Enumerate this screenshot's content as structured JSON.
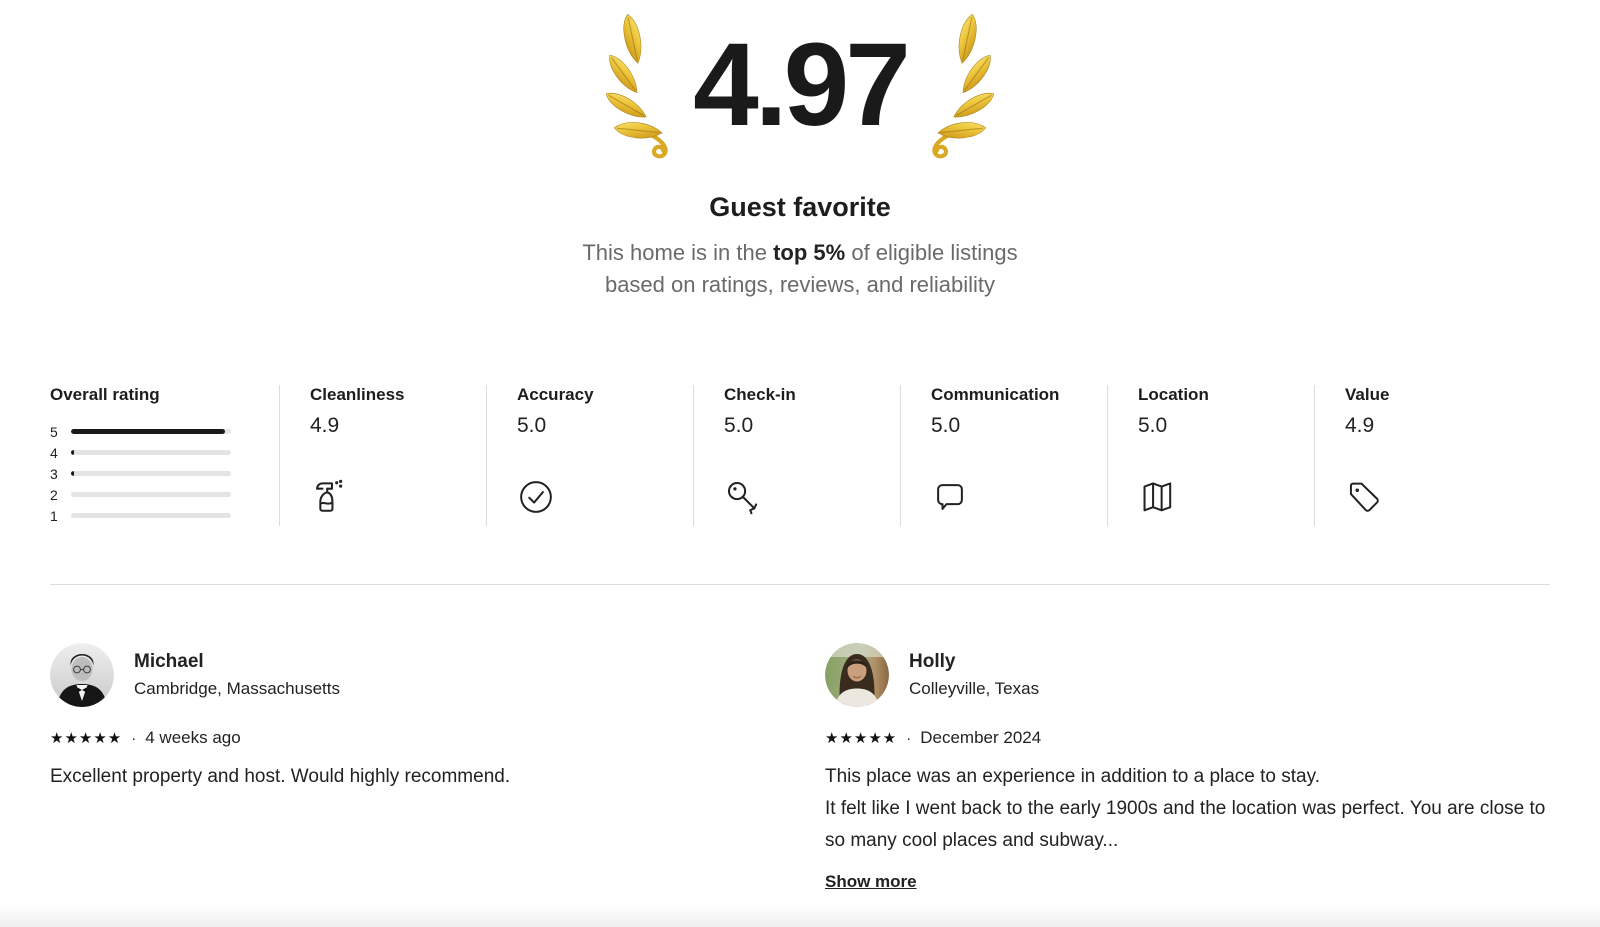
{
  "hero": {
    "rating": "4.97",
    "title": "Guest favorite",
    "subtitle_prefix": "This home is in the ",
    "subtitle_bold": "top 5%",
    "subtitle_suffix": " of eligible listings",
    "subtitle_line2": "based on ratings, reviews, and reliability",
    "laurel_icon": "gold-laurel-icon"
  },
  "ratings": {
    "overall": {
      "label": "Overall rating",
      "bars": [
        {
          "star": "5",
          "pct": 96
        },
        {
          "star": "4",
          "pct": 2
        },
        {
          "star": "3",
          "pct": 2
        },
        {
          "star": "2",
          "pct": 0
        },
        {
          "star": "1",
          "pct": 0
        }
      ]
    },
    "categories": [
      {
        "label": "Cleanliness",
        "value": "4.9",
        "icon": "spray-bottle-icon"
      },
      {
        "label": "Accuracy",
        "value": "5.0",
        "icon": "check-circle-icon"
      },
      {
        "label": "Check-in",
        "value": "5.0",
        "icon": "key-icon"
      },
      {
        "label": "Communication",
        "value": "5.0",
        "icon": "speech-bubble-icon"
      },
      {
        "label": "Location",
        "value": "5.0",
        "icon": "folded-map-icon"
      },
      {
        "label": "Value",
        "value": "4.9",
        "icon": "price-tag-icon"
      }
    ]
  },
  "reviews": [
    {
      "name": "Michael",
      "location": "Cambridge, Massachusetts",
      "stars": "★★★★★",
      "separator": "·",
      "date": "4 weeks ago",
      "text": "Excellent property and host. Would highly recommend."
    },
    {
      "name": "Holly",
      "location": "Colleyville, Texas",
      "stars": "★★★★★",
      "separator": "·",
      "date": "December 2024",
      "text": "This place was an experience in addition to a place to stay.\nIt felt like I went back to the early 1900s and the location was perfect. You are close to so many cool places and subway...",
      "show_more": "Show more"
    }
  ],
  "colors": {
    "text_primary": "#222222",
    "text_secondary": "#6a6a6a",
    "bar_fill": "#1a1a1a",
    "bar_track": "#e4e4e4",
    "divider": "#dddddd",
    "laurel_gold": "#e3bc32"
  }
}
